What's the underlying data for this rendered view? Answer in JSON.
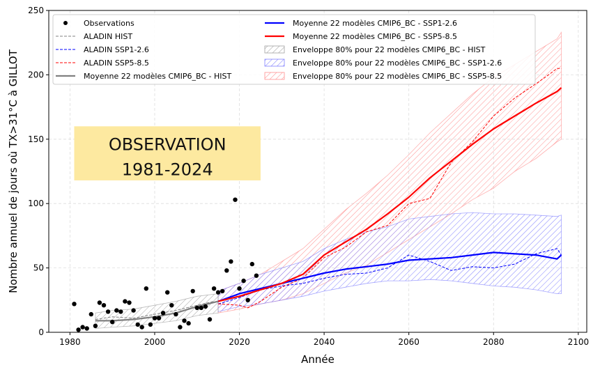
{
  "chart_data": {
    "type": "line",
    "xlabel": "Année",
    "ylabel": "Nombre annuel de jours où TX>31°C à GILLOT",
    "xlim": [
      1975,
      2102
    ],
    "ylim": [
      0,
      250
    ],
    "xticks": [
      1980,
      2000,
      2020,
      2040,
      2060,
      2080,
      2100
    ],
    "yticks": [
      0,
      50,
      100,
      150,
      200,
      250
    ],
    "grid": true,
    "annotation": {
      "line1": "OBSERVATION",
      "line2": "1981-2024",
      "color": "#fde9a0"
    },
    "observations": {
      "name": "Observations",
      "color": "#000000",
      "x": [
        1981,
        1982,
        1983,
        1984,
        1985,
        1986,
        1987,
        1988,
        1989,
        1990,
        1991,
        1992,
        1993,
        1994,
        1995,
        1996,
        1997,
        1998,
        1999,
        2000,
        2001,
        2002,
        2003,
        2004,
        2005,
        2006,
        2007,
        2008,
        2009,
        2010,
        2011,
        2012,
        2013,
        2014,
        2015,
        2016,
        2017,
        2018,
        2019,
        2020,
        2021,
        2022,
        2023,
        2024
      ],
      "y": [
        22,
        2,
        4,
        3,
        14,
        5,
        23,
        21,
        16,
        8,
        17,
        16,
        24,
        23,
        17,
        6,
        4,
        34,
        6,
        11,
        11,
        15,
        31,
        21,
        14,
        4,
        9,
        7,
        32,
        19,
        19,
        20,
        10,
        34,
        31,
        32,
        48,
        55,
        103,
        34,
        40,
        25,
        53,
        44
      ]
    },
    "series": [
      {
        "name": "ALADIN HIST",
        "color": "#808080",
        "style": "dashed",
        "width": 1,
        "x": [
          1986,
          1990,
          1995,
          2000,
          2005,
          2010,
          2014
        ],
        "y": [
          10,
          12,
          11,
          14,
          17,
          21,
          24
        ]
      },
      {
        "name": "ALADIN SSP1-2.6",
        "color": "#0000ff",
        "style": "dashed",
        "width": 1,
        "x": [
          2015,
          2020,
          2025,
          2030,
          2035,
          2040,
          2045,
          2050,
          2055,
          2060,
          2065,
          2070,
          2075,
          2080,
          2085,
          2090,
          2095,
          2096
        ],
        "y": [
          22,
          27,
          33,
          36,
          38,
          42,
          45,
          46,
          50,
          60,
          55,
          48,
          51,
          50,
          53,
          61,
          65,
          60
        ]
      },
      {
        "name": "ALADIN SSP5-8.5",
        "color": "#ff0000",
        "style": "dashed",
        "width": 1,
        "x": [
          2015,
          2020,
          2022,
          2025,
          2030,
          2035,
          2040,
          2045,
          2050,
          2055,
          2060,
          2065,
          2070,
          2075,
          2080,
          2085,
          2090,
          2093,
          2095,
          2096
        ],
        "y": [
          22,
          21,
          19,
          24,
          35,
          42,
          58,
          66,
          78,
          83,
          100,
          104,
          132,
          148,
          168,
          182,
          193,
          200,
          205,
          205
        ]
      },
      {
        "name": "Moyenne 22 modèles CMIP6_BC - HIST",
        "color": "#808080",
        "style": "solid",
        "width": 2.2,
        "x": [
          1986,
          1990,
          1995,
          2000,
          2005,
          2010,
          2015
        ],
        "y": [
          9,
          9,
          10,
          12,
          15,
          20,
          24
        ]
      },
      {
        "name": "Moyenne 22 modèles CMIP6_BC - SSP1-2.6",
        "color": "#0000ff",
        "style": "solid",
        "width": 2.2,
        "x": [
          2015,
          2020,
          2025,
          2030,
          2035,
          2040,
          2045,
          2050,
          2055,
          2060,
          2065,
          2070,
          2075,
          2080,
          2085,
          2090,
          2095,
          2096
        ],
        "y": [
          24,
          30,
          34,
          38,
          42,
          46,
          49,
          51,
          53,
          56,
          57,
          58,
          60,
          62,
          61,
          60,
          57,
          60
        ]
      },
      {
        "name": "Moyenne 22 modèles CMIP6_BC - SSP5-8.5",
        "color": "#ff0000",
        "style": "solid",
        "width": 2.2,
        "x": [
          2015,
          2020,
          2025,
          2030,
          2035,
          2040,
          2045,
          2050,
          2055,
          2060,
          2065,
          2070,
          2075,
          2080,
          2085,
          2090,
          2095,
          2096
        ],
        "y": [
          24,
          28,
          33,
          38,
          45,
          60,
          70,
          80,
          92,
          105,
          120,
          133,
          146,
          158,
          168,
          178,
          187,
          190
        ]
      }
    ],
    "envelopes": [
      {
        "name": "Enveloppe 80% pour 22 modèles CMIP6_BC -  HIST",
        "color": "#a0a0a0",
        "x": [
          1986,
          1990,
          1995,
          2000,
          2005,
          2010,
          2015
        ],
        "lower": [
          3,
          4,
          5,
          7,
          9,
          13,
          15
        ],
        "upper": [
          15,
          17,
          18,
          21,
          24,
          28,
          30
        ]
      },
      {
        "name": "Enveloppe 80% pour 22 modèles CMIP6_BC -  SSP1-2.6",
        "color": "#8080ff",
        "x": [
          2015,
          2020,
          2025,
          2030,
          2035,
          2040,
          2045,
          2050,
          2055,
          2060,
          2065,
          2070,
          2075,
          2080,
          2085,
          2090,
          2095,
          2096
        ],
        "lower": [
          16,
          20,
          22,
          25,
          28,
          32,
          35,
          38,
          40,
          40,
          41,
          40,
          38,
          36,
          35,
          33,
          30,
          30
        ],
        "upper": [
          32,
          38,
          45,
          50,
          55,
          65,
          72,
          78,
          82,
          88,
          90,
          92,
          93,
          92,
          92,
          91,
          90,
          91
        ]
      },
      {
        "name": "Enveloppe 80% pour 22 modèles CMIP6_BC -  SSP5-8.5",
        "color": "#ff9090",
        "x": [
          2015,
          2020,
          2025,
          2030,
          2035,
          2040,
          2045,
          2050,
          2055,
          2060,
          2065,
          2070,
          2075,
          2080,
          2085,
          2090,
          2095,
          2096
        ],
        "lower": [
          15,
          18,
          22,
          25,
          30,
          38,
          46,
          52,
          62,
          72,
          82,
          92,
          103,
          112,
          125,
          135,
          148,
          150
        ],
        "upper": [
          32,
          38,
          45,
          55,
          65,
          80,
          95,
          108,
          122,
          138,
          155,
          170,
          185,
          198,
          208,
          218,
          228,
          233
        ]
      }
    ],
    "legend": {
      "placement": "top-left",
      "col1": [
        {
          "label": "Observations",
          "kind": "marker",
          "color": "#000000"
        },
        {
          "label": "ALADIN HIST",
          "kind": "dashed",
          "color": "#808080"
        },
        {
          "label": "ALADIN SSP1-2.6",
          "kind": "dashed",
          "color": "#0000ff"
        },
        {
          "label": "ALADIN SSP5-8.5",
          "kind": "dashed",
          "color": "#ff0000"
        },
        {
          "label": "Moyenne 22 modèles CMIP6_BC - HIST",
          "kind": "solid",
          "color": "#808080"
        }
      ],
      "col2": [
        {
          "label": "Moyenne 22 modèles CMIP6_BC - SSP1-2.6",
          "kind": "solid",
          "color": "#0000ff"
        },
        {
          "label": "Moyenne 22 modèles CMIP6_BC - SSP5-8.5",
          "kind": "solid",
          "color": "#ff0000"
        },
        {
          "label": "Enveloppe 80% pour 22 modèles CMIP6_BC -  HIST",
          "kind": "hatch",
          "color": "#a0a0a0"
        },
        {
          "label": "Enveloppe 80% pour 22 modèles CMIP6_BC -  SSP1-2.6",
          "kind": "hatch",
          "color": "#8080ff"
        },
        {
          "label": "Enveloppe 80% pour 22 modèles CMIP6_BC -  SSP5-8.5",
          "kind": "hatch",
          "color": "#ff9090"
        }
      ]
    }
  }
}
